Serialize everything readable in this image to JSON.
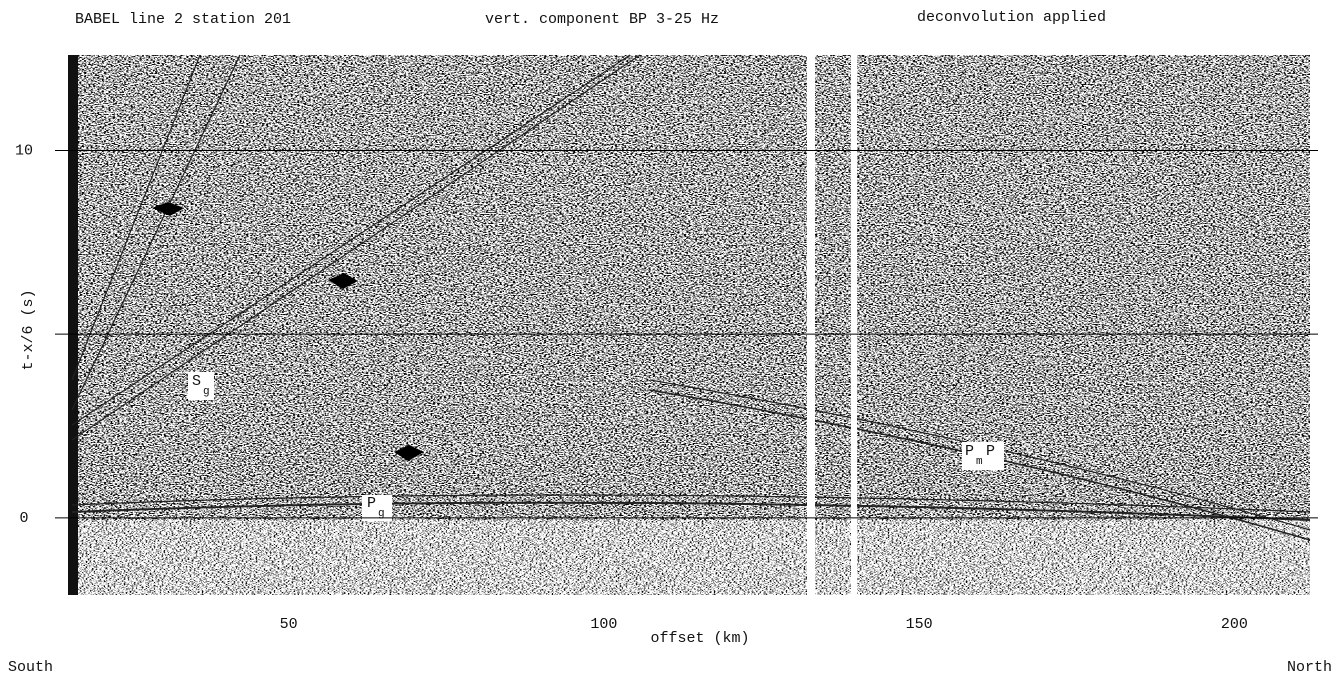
{
  "chart_data": {
    "type": "seismogram",
    "title_parts": [
      "BABEL  line 2  station 201",
      "vert. component  BP 3-25 Hz",
      "deconvolution applied"
    ],
    "x_label": "offset (km)",
    "y_label": "t-x/6 (s)",
    "direction_labels": [
      "South",
      "North"
    ],
    "xlim": [
      15,
      212
    ],
    "ylim": [
      -2.1,
      12.6
    ],
    "xticks": [
      50,
      100,
      150,
      200
    ],
    "yticks": [
      0,
      10
    ],
    "grid_lines": [
      0,
      5,
      10
    ],
    "phases": [
      {
        "label": "S",
        "subscript": "g"
      },
      {
        "label": "P",
        "subscript": "g"
      },
      {
        "label": "P",
        "subscript": "m",
        "suffix": "P"
      }
    ]
  }
}
